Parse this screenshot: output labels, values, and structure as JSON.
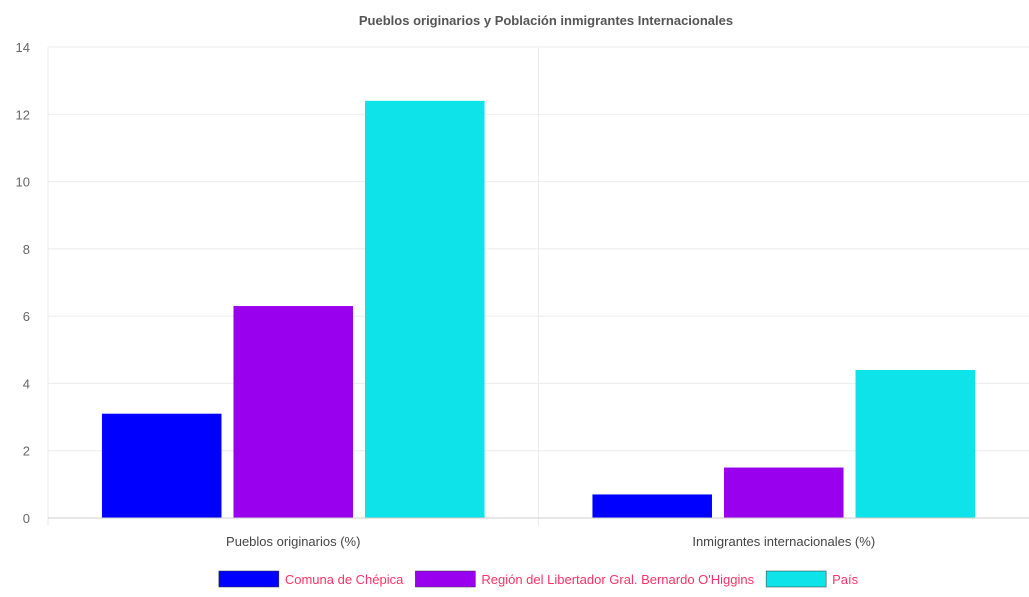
{
  "chart_data": {
    "type": "bar",
    "title": "Pueblos originarios y Población inmigrantes Internacionales",
    "categories": [
      "Pueblos originarios (%)",
      "Inmigrantes internacionales (%)"
    ],
    "series": [
      {
        "name": "Comuna de Chépica",
        "values": [
          3.1,
          0.7
        ],
        "color": "#0000ff"
      },
      {
        "name": "Región del Libertador Gral. Bernardo O'Higgins",
        "values": [
          6.3,
          1.5
        ],
        "color": "#9900ee"
      },
      {
        "name": "País",
        "values": [
          12.4,
          4.4
        ],
        "color": "#0fe3ea"
      }
    ],
    "ylim": [
      0,
      14
    ],
    "yticks": [
      0,
      2,
      4,
      6,
      8,
      10,
      12,
      14
    ],
    "ytick_labels": [
      "0",
      "2",
      "4",
      "6",
      "8",
      "10",
      "12",
      "14"
    ],
    "grid": true,
    "legend_position": "bottom",
    "legend_text_color": "#ff3366",
    "gridline_color": "#ebebeb",
    "axis_color": "#cccccc"
  }
}
